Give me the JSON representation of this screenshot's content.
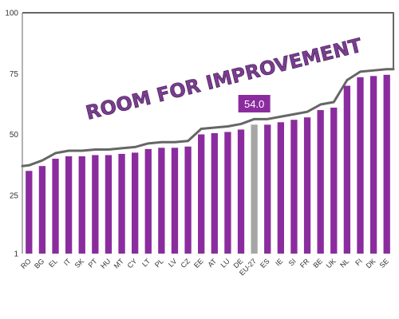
{
  "chart_data": {
    "type": "bar",
    "title": "",
    "xlabel": "",
    "ylabel": "",
    "ylim": [
      1,
      100
    ],
    "yticks": [
      1,
      25,
      50,
      75,
      100
    ],
    "grid": false,
    "categories": [
      "RO",
      "BG",
      "EL",
      "IT",
      "SK",
      "PT",
      "HU",
      "MT",
      "CY",
      "LT",
      "PL",
      "LV",
      "CZ",
      "EE",
      "AT",
      "LU",
      "DE",
      "EU-27",
      "ES",
      "IE",
      "SI",
      "FR",
      "BE",
      "UK",
      "NL",
      "FI",
      "DK",
      "SE"
    ],
    "values": [
      35,
      37,
      40,
      41,
      41,
      41.5,
      41.5,
      42,
      42.5,
      44,
      44.5,
      44.5,
      45,
      50,
      50.5,
      51,
      52,
      54,
      54,
      55,
      56,
      57,
      60,
      61,
      70,
      73.5,
      74,
      74.5
    ],
    "highlight": {
      "category": "EU-27",
      "value": 54,
      "label": "54.0"
    },
    "annotation": "ROOM FOR IMPROVEMENT",
    "colors": {
      "bar": "#8b2c9e",
      "highlight_bar": "#a6a6a6",
      "callout": "#8b2c9e",
      "curve": "#666666",
      "frame": "#666666"
    }
  }
}
